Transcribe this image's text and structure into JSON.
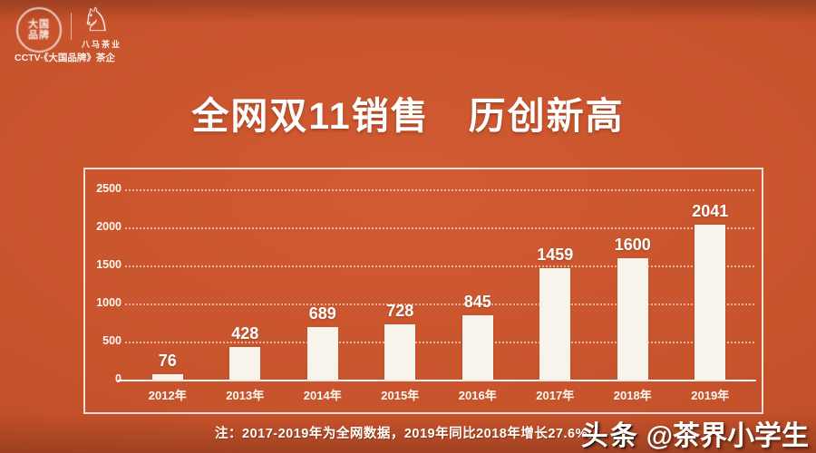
{
  "page": {
    "background_color": "#c7532c",
    "text_color": "#ffffff"
  },
  "header": {
    "emblem_text": "大国品牌",
    "brand_name": "八马茶业",
    "tagline": "CCTV·《大国品牌》茶企"
  },
  "title": "全网双11销售　历创新高",
  "chart_data": {
    "type": "bar",
    "title": "全网双11销售 历创新高",
    "categories": [
      "2012年",
      "2013年",
      "2014年",
      "2015年",
      "2016年",
      "2017年",
      "2018年",
      "2019年"
    ],
    "values": [
      76,
      428,
      689,
      728,
      845,
      1459,
      1600,
      2041
    ],
    "ylim": [
      0,
      2500
    ],
    "yticks": [
      0,
      500,
      1000,
      1500,
      2000,
      2500
    ],
    "grid": "horizontal-dotted",
    "bar_color": "#f8f4ec",
    "value_labels_shown": true,
    "legend": "none",
    "xlabel": "",
    "ylabel": ""
  },
  "note": "注：2017-2019年为全网数据，2019年同比2018年增长27.6%。",
  "watermark": {
    "platform": "头条",
    "handle": "@茶界小学生"
  }
}
